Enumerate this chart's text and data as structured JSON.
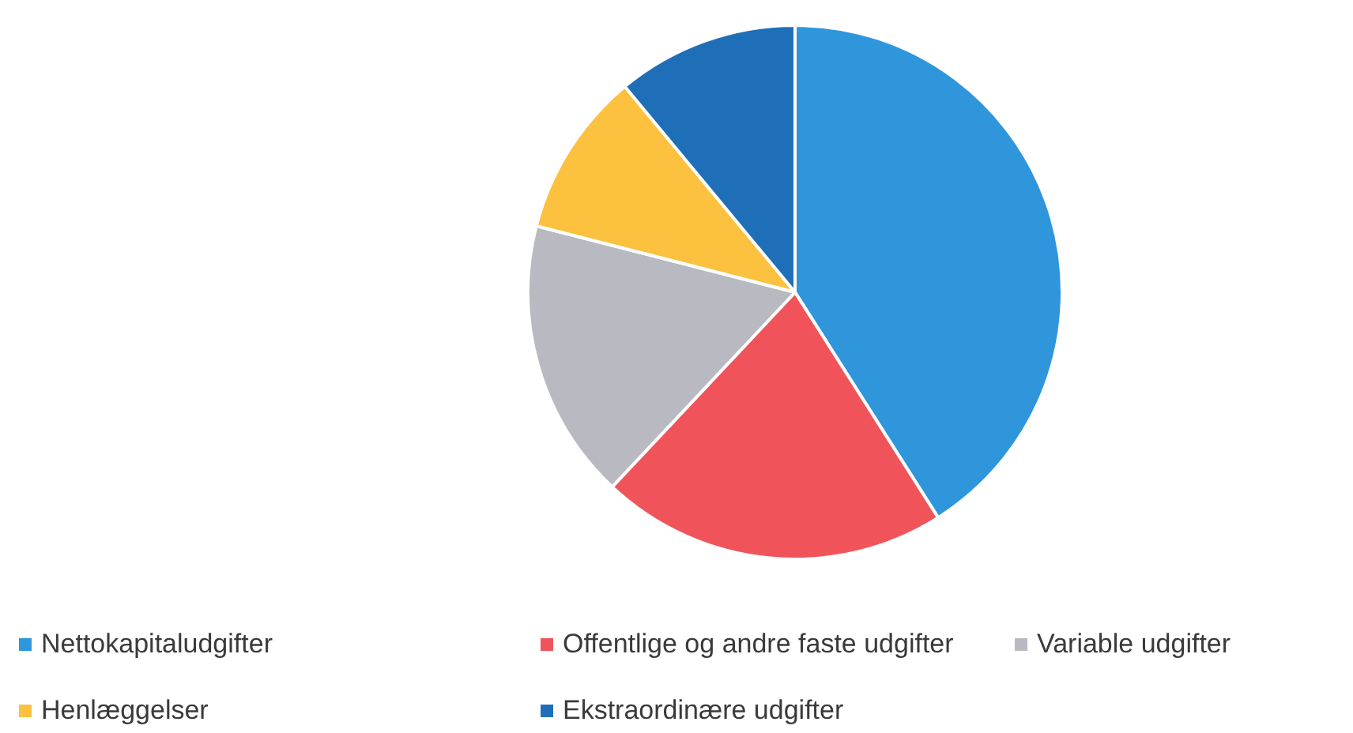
{
  "chart_data": {
    "type": "pie",
    "categories": [
      "Nettokapitaludgifter",
      "Offentlige og andre faste udgifter",
      "Variable udgifter",
      "Henlæggelser",
      "Ekstraordinære udgifter"
    ],
    "values": [
      41,
      21,
      17,
      10,
      11
    ],
    "colors": [
      "#2f96dc",
      "#f0545a",
      "#b9b9c1",
      "#fbc13f",
      "#1f6fb8"
    ],
    "legend": "bottom"
  }
}
